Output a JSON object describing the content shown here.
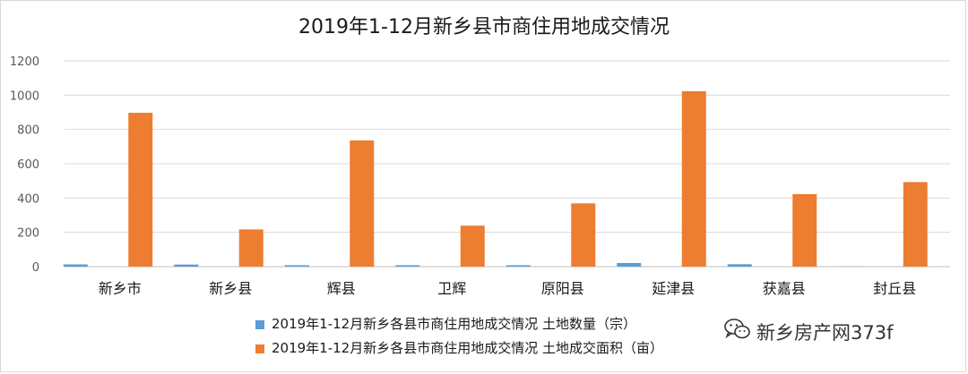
{
  "chart_data": {
    "type": "bar",
    "title": "2019年1-12月新乡县市商住用地成交情况",
    "categories": [
      "新乡市",
      "新乡县",
      "辉县",
      "卫辉",
      "原阳县",
      "延津县",
      "获嘉县",
      "封丘县"
    ],
    "ylim": [
      0,
      1200
    ],
    "yticks": [
      0,
      200,
      400,
      600,
      800,
      1000,
      1200
    ],
    "grid": true,
    "legend_position": "bottom",
    "series": [
      {
        "name": "2019年1-12月新乡各县市商住用地成交情况 土地数量（宗）",
        "color": "#5b9bd5",
        "values": [
          13,
          12,
          8,
          8,
          8,
          21,
          14,
          1
        ]
      },
      {
        "name": "2019年1-12月新乡各县市商住用地成交情况 土地成交面积（亩）",
        "color": "#ed7d31",
        "values": [
          897,
          217,
          736,
          239,
          369,
          1023,
          423,
          493
        ]
      }
    ]
  },
  "watermark": {
    "text": "新乡房产网373f",
    "icon": "wechat-icon"
  }
}
